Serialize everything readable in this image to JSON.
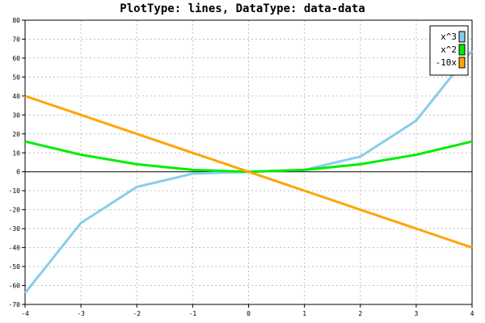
{
  "chart_data": {
    "type": "line",
    "title": "PlotType: lines, DataType: data-data",
    "xlabel": "",
    "ylabel": "",
    "x": [
      -4,
      -3,
      -2,
      -1,
      0,
      1,
      2,
      3,
      4
    ],
    "xlim": [
      -4,
      4
    ],
    "ylim": [
      -70,
      80
    ],
    "x_ticks": [
      -4,
      -3,
      -2,
      -1,
      0,
      1,
      2,
      3,
      4
    ],
    "y_ticks": [
      -70,
      -60,
      -50,
      -40,
      -30,
      -20,
      -10,
      0,
      10,
      20,
      30,
      40,
      50,
      60,
      70,
      80
    ],
    "grid": true,
    "legend_position": "top-right",
    "series": [
      {
        "name": "x^3",
        "color": "#87ceeb",
        "values": [
          -64,
          -27,
          -8,
          -1,
          0,
          1,
          8,
          27,
          64
        ]
      },
      {
        "name": "x^2",
        "color": "#00ee00",
        "values": [
          16,
          9,
          4,
          1,
          0,
          1,
          4,
          9,
          16
        ]
      },
      {
        "name": "-10x",
        "color": "#ffa500",
        "values": [
          40,
          30,
          20,
          10,
          0,
          -10,
          -20,
          -30,
          -40
        ]
      }
    ]
  }
}
